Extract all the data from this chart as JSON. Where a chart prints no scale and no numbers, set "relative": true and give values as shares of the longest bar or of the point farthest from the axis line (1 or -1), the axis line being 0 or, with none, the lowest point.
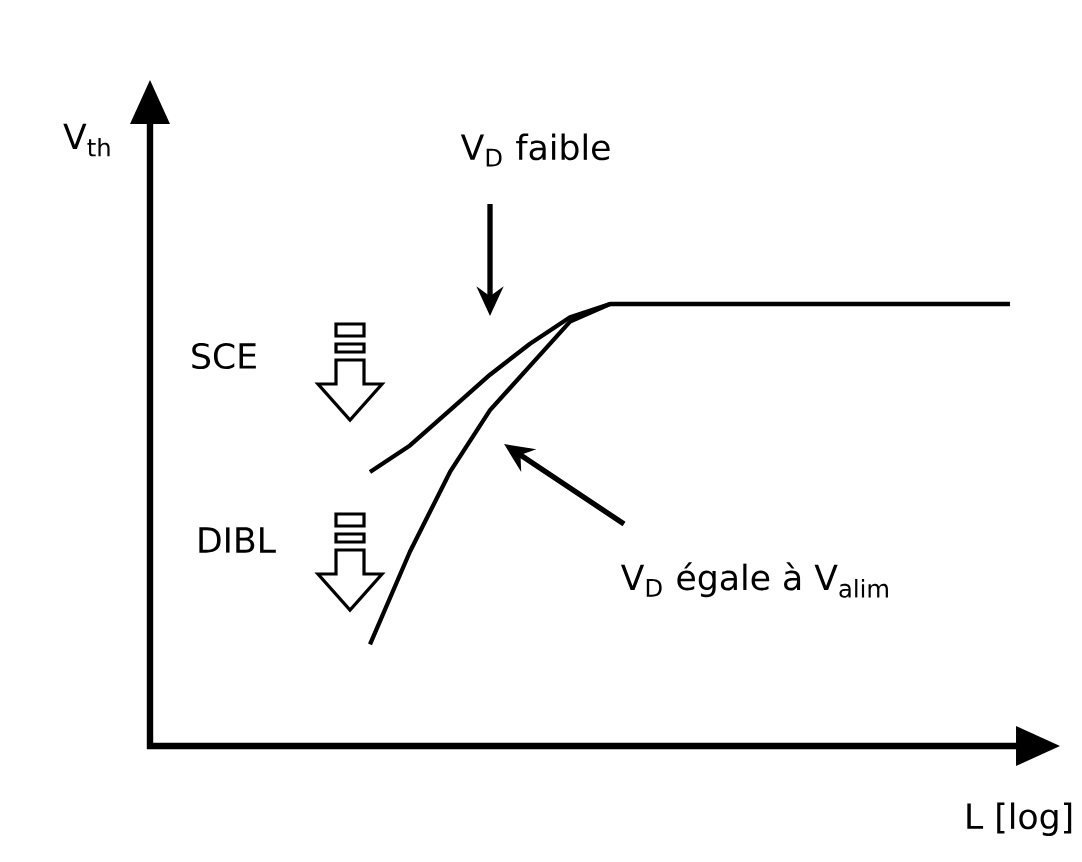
{
  "chart_data": {
    "type": "line",
    "relative": true,
    "xlabel": "L [log]",
    "categories": [
      null,
      null,
      null,
      null,
      null,
      null,
      null,
      null,
      null,
      null,
      null,
      null,
      null,
      null,
      null,
      null,
      null
    ],
    "series": [
      {
        "color": "#000000",
        "values": [
          0.62,
          0.68,
          0.76,
          0.84,
          0.91,
          0.97,
          1,
          1,
          1,
          1,
          1,
          1,
          1,
          1,
          1,
          1,
          1
        ]
      },
      {
        "color": "#000000",
        "values": [
          0.23,
          0.44,
          0.62,
          0.76,
          0.86,
          0.96,
          1,
          null,
          null,
          null,
          null,
          null,
          null,
          null,
          null,
          null,
          null
        ]
      }
    ],
    "annotations": [
      "V$_{D}$ faible",
      "SCE",
      "DIBL",
      "V$_{D}$ égale à V$_{alim}$",
      "V$_{th}$"
    ]
  }
}
